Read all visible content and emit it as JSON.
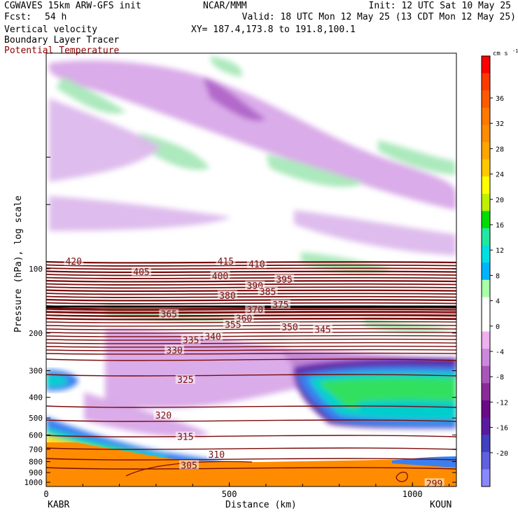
{
  "header": {
    "model": "CGWAVES 15km ARW-GFS init",
    "forecast_label": "Fcst:",
    "forecast_hours": "54 h",
    "center": "NCAR/MMM",
    "init": "Init: 12 UTC Sat 10 May 25",
    "valid": "Valid: 18 UTC Mon 12 May 25 (13 CDT Mon 12 May 25)",
    "xy": "XY= 187.4,173.8 to 191.8,100.1",
    "field1": "Vertical velocity",
    "field2": "Boundary Layer Tracer",
    "field3": "Potential Temperature"
  },
  "colors": {
    "theta_line": "#7a0a0a",
    "field3_text": "#8b1a1a",
    "terrain": "#ff8c00"
  },
  "chart_data": {
    "type": "heatmap",
    "xlabel": "Distance (km)",
    "ylabel": "Pressure (hPa), log scale",
    "xlim": [
      0,
      1120
    ],
    "x_ticks": [
      "0",
      "500",
      "1000"
    ],
    "x_tick_values": [
      0,
      500,
      1000
    ],
    "y_ticks": [
      "100",
      "200",
      "300",
      "400",
      "500",
      "600",
      "700",
      "800",
      "900",
      "1000"
    ],
    "y_tick_values": [
      100,
      200,
      300,
      400,
      500,
      600,
      700,
      800,
      900,
      1000
    ],
    "y_scale": "log",
    "start_station": "KABR",
    "end_station": "KOUN",
    "colorbar": {
      "units": "cm s",
      "units_exp": "-1",
      "tick_labels": [
        "36",
        "32",
        "28",
        "24",
        "20",
        "16",
        "12",
        "8",
        "4",
        "0",
        "-4",
        "-8",
        "-12",
        "-16",
        "-20"
      ],
      "colors": [
        "#ff0000",
        "#ff3a00",
        "#ff5a00",
        "#ff7800",
        "#ff8c00",
        "#ffa500",
        "#ffc800",
        "#ffff00",
        "#bff000",
        "#00dc00",
        "#20e8a0",
        "#00e0e0",
        "#00b4ff",
        "#a8ffa8",
        "#ffffff",
        "#ffffff",
        "#eeb0ee",
        "#cc88dd",
        "#aa55bb",
        "#8a2a99",
        "#6a0a88",
        "#5a1aa0",
        "#4040c0",
        "#6060e0",
        "#8888ff"
      ]
    },
    "theta_labels": [
      {
        "text": "420",
        "x": 75,
        "p": 92
      },
      {
        "text": "415",
        "x": 490,
        "p": 92
      },
      {
        "text": "410",
        "x": 575,
        "p": 95
      },
      {
        "text": "405",
        "x": 260,
        "p": 103
      },
      {
        "text": "400",
        "x": 475,
        "p": 108
      },
      {
        "text": "395",
        "x": 650,
        "p": 112
      },
      {
        "text": "390",
        "x": 570,
        "p": 120
      },
      {
        "text": "385",
        "x": 605,
        "p": 128
      },
      {
        "text": "380",
        "x": 495,
        "p": 133
      },
      {
        "text": "375",
        "x": 640,
        "p": 147
      },
      {
        "text": "370",
        "x": 570,
        "p": 155
      },
      {
        "text": "365",
        "x": 335,
        "p": 163
      },
      {
        "text": "360",
        "x": 540,
        "p": 170
      },
      {
        "text": "355",
        "x": 510,
        "p": 182
      },
      {
        "text": "350",
        "x": 665,
        "p": 187
      },
      {
        "text": "345",
        "x": 755,
        "p": 192
      },
      {
        "text": "340",
        "x": 455,
        "p": 207
      },
      {
        "text": "335",
        "x": 395,
        "p": 215
      },
      {
        "text": "330",
        "x": 350,
        "p": 240
      },
      {
        "text": "325",
        "x": 380,
        "p": 330
      },
      {
        "text": "320",
        "x": 320,
        "p": 485
      },
      {
        "text": "315",
        "x": 380,
        "p": 610
      },
      {
        "text": "310",
        "x": 465,
        "p": 740
      },
      {
        "text": "305",
        "x": 390,
        "p": 830
      },
      {
        "text": "299",
        "x": 1060,
        "p": 1010
      }
    ]
  }
}
